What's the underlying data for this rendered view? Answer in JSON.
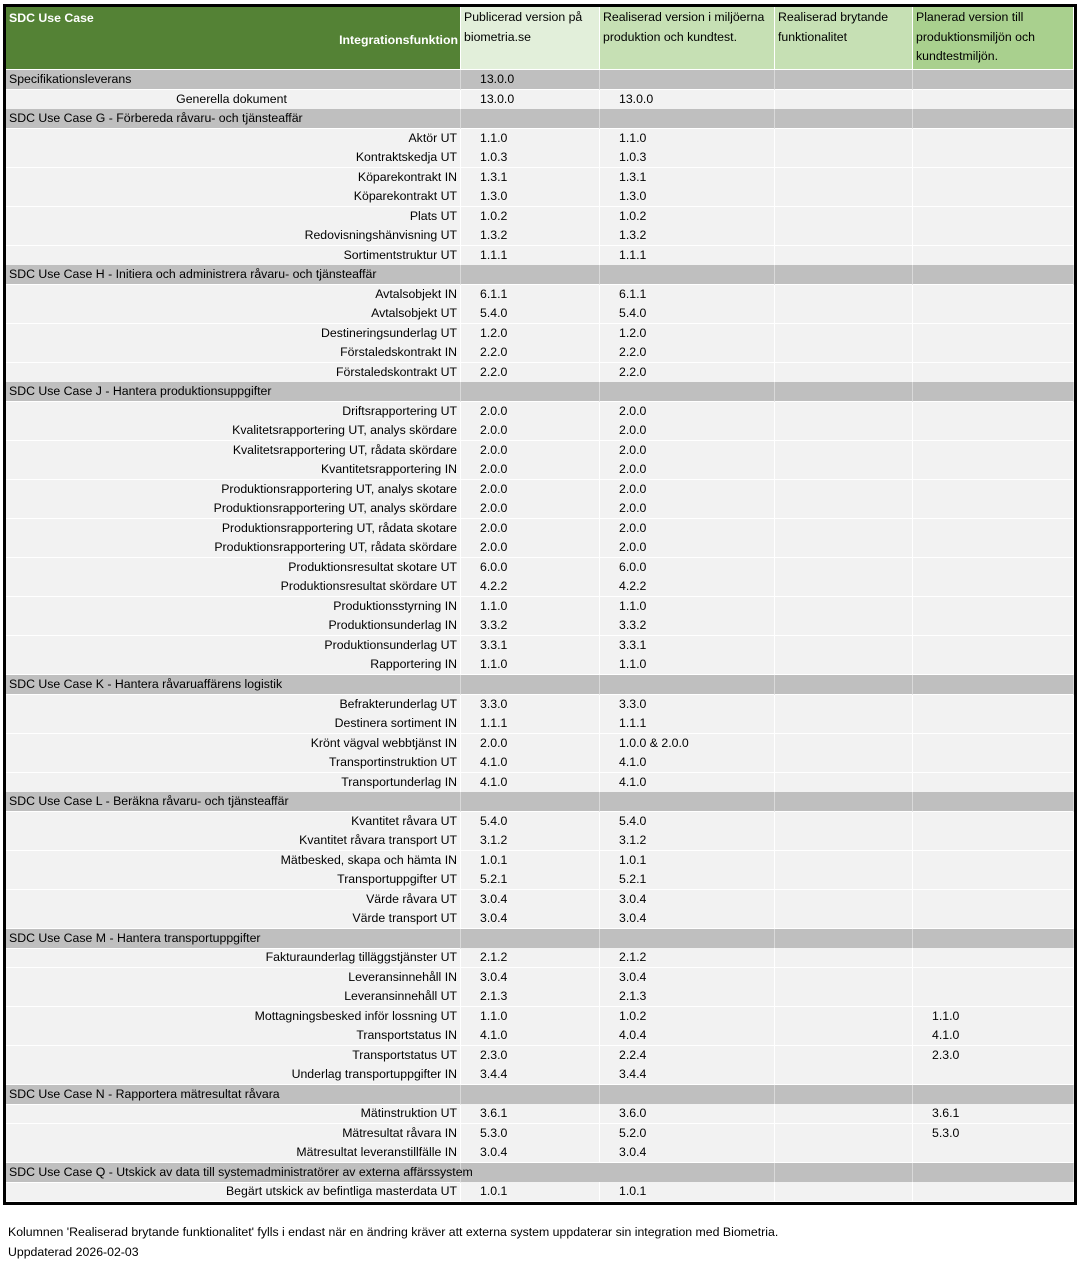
{
  "header": {
    "use_case": "SDC Use Case",
    "integration": "Integrationsfunktion",
    "published": "Publicerad  version på biometria.se",
    "realized": "Realiserad version i miljöerna produktion och kundtest.",
    "breaking": "Realiserad brytande funktionalitet",
    "planned": "Planerad version till produktionsmiljön och kundtestmiljön."
  },
  "colors": {
    "header_dark": "#548235",
    "header_light": "#e2efda",
    "header_mid": "#c6e0b4",
    "header_green": "#a9d08e",
    "group_row": "#bfbfbf",
    "data_row": "#f2f2f2"
  },
  "groups": [
    {
      "title": "Specifikationsleverans",
      "published": "13.0.0",
      "rows": [
        {
          "name": "Generella dokument",
          "published": "13.0.0",
          "realized": "13.0.0",
          "breaking": "",
          "planned": ""
        }
      ]
    },
    {
      "title": "SDC Use Case G - Förbereda råvaru- och tjänsteaffär",
      "rows": [
        {
          "name": "Aktör UT",
          "published": "1.1.0",
          "realized": "1.1.0"
        },
        {
          "name": "Kontraktskedja UT",
          "published": "1.0.3",
          "realized": "1.0.3"
        },
        {
          "name": "Köparekontrakt IN",
          "published": "1.3.1",
          "realized": "1.3.1"
        },
        {
          "name": "Köparekontrakt UT",
          "published": "1.3.0",
          "realized": "1.3.0"
        },
        {
          "name": "Plats UT",
          "published": "1.0.2",
          "realized": "1.0.2"
        },
        {
          "name": "Redovisningshänvisning UT",
          "published": "1.3.2",
          "realized": "1.3.2"
        },
        {
          "name": "Sortimentstruktur UT",
          "published": "1.1.1",
          "realized": "1.1.1"
        }
      ]
    },
    {
      "title": "SDC Use Case H - Initiera och administrera råvaru- och tjänsteaffär",
      "rows": [
        {
          "name": "Avtalsobjekt IN",
          "published": "6.1.1",
          "realized": "6.1.1"
        },
        {
          "name": "Avtalsobjekt UT",
          "published": "5.4.0",
          "realized": "5.4.0"
        },
        {
          "name": "Destineringsunderlag UT",
          "published": "1.2.0",
          "realized": "1.2.0"
        },
        {
          "name": "Förstaledskontrakt IN",
          "published": "2.2.0",
          "realized": "2.2.0"
        },
        {
          "name": "Förstaledskontrakt UT",
          "published": "2.2.0",
          "realized": "2.2.0"
        }
      ]
    },
    {
      "title": "SDC Use Case J - Hantera produktionsuppgifter",
      "rows": [
        {
          "name": "Driftsrapportering UT",
          "published": "2.0.0",
          "realized": "2.0.0"
        },
        {
          "name": "Kvalitetsrapportering UT, analys skördare",
          "published": "2.0.0",
          "realized": "2.0.0"
        },
        {
          "name": "Kvalitetsrapportering UT, rådata skördare",
          "published": "2.0.0",
          "realized": "2.0.0"
        },
        {
          "name": "Kvantitetsrapportering IN",
          "published": "2.0.0",
          "realized": "2.0.0"
        },
        {
          "name": "Produktionsrapportering UT, analys skotare",
          "published": "2.0.0",
          "realized": "2.0.0"
        },
        {
          "name": "Produktionsrapportering UT, analys skördare",
          "published": "2.0.0",
          "realized": "2.0.0"
        },
        {
          "name": "Produktionsrapportering UT, rådata skotare",
          "published": "2.0.0",
          "realized": "2.0.0"
        },
        {
          "name": "Produktionsrapportering UT, rådata skördare",
          "published": "2.0.0",
          "realized": "2.0.0"
        },
        {
          "name": "Produktionsresultat skotare UT",
          "published": "6.0.0",
          "realized": "6.0.0"
        },
        {
          "name": "Produktionsresultat skördare UT",
          "published": "4.2.2",
          "realized": "4.2.2"
        },
        {
          "name": "Produktionsstyrning IN",
          "published": "1.1.0",
          "realized": "1.1.0"
        },
        {
          "name": "Produktionsunderlag IN",
          "published": "3.3.2",
          "realized": "3.3.2"
        },
        {
          "name": "Produktionsunderlag UT",
          "published": "3.3.1",
          "realized": "3.3.1"
        },
        {
          "name": "Rapportering IN",
          "published": "1.1.0",
          "realized": "1.1.0"
        }
      ]
    },
    {
      "title": "SDC Use Case K - Hantera råvaruaffärens logistik",
      "rows": [
        {
          "name": "Befrakterunderlag UT",
          "published": "3.3.0",
          "realized": "3.3.0"
        },
        {
          "name": "Destinera sortiment IN",
          "published": "1.1.1",
          "realized": "1.1.1"
        },
        {
          "name": "Krönt vägval webbtjänst IN",
          "published": "2.0.0",
          "realized": "1.0.0 & 2.0.0"
        },
        {
          "name": "Transportinstruktion UT",
          "published": "4.1.0",
          "realized": "4.1.0"
        },
        {
          "name": "Transportunderlag IN",
          "published": "4.1.0",
          "realized": "4.1.0"
        }
      ]
    },
    {
      "title": "SDC Use Case L - Beräkna råvaru- och tjänsteaffär",
      "rows": [
        {
          "name": "Kvantitet råvara UT",
          "published": "5.4.0",
          "realized": "5.4.0"
        },
        {
          "name": "Kvantitet råvara transport UT",
          "published": "3.1.2",
          "realized": "3.1.2"
        },
        {
          "name": "Mätbesked, skapa och hämta IN",
          "published": "1.0.1",
          "realized": "1.0.1"
        },
        {
          "name": "Transportuppgifter UT",
          "published": "5.2.1",
          "realized": "5.2.1"
        },
        {
          "name": "Värde råvara UT",
          "published": "3.0.4",
          "realized": "3.0.4"
        },
        {
          "name": "Värde transport UT",
          "published": "3.0.4",
          "realized": "3.0.4"
        }
      ]
    },
    {
      "title": "SDC Use Case M - Hantera transportuppgifter",
      "rows": [
        {
          "name": "Fakturaunderlag tilläggstjänster UT",
          "published": "2.1.2",
          "realized": "2.1.2"
        },
        {
          "name": "Leveransinnehåll IN",
          "published": "3.0.4",
          "realized": "3.0.4"
        },
        {
          "name": "Leveransinnehåll UT",
          "published": "2.1.3",
          "realized": "2.1.3"
        },
        {
          "name": "Mottagningsbesked inför lossning UT",
          "published": "1.1.0",
          "realized": "1.0.2",
          "planned": "1.1.0"
        },
        {
          "name": "Transportstatus IN",
          "published": "4.1.0",
          "realized": "4.0.4",
          "planned": "4.1.0"
        },
        {
          "name": "Transportstatus UT",
          "published": "2.3.0",
          "realized": "2.2.4",
          "planned": "2.3.0"
        },
        {
          "name": "Underlag transportuppgifter IN",
          "published": "3.4.4",
          "realized": "3.4.4"
        }
      ]
    },
    {
      "title": "SDC Use Case N - Rapportera mätresultat råvara",
      "rows": [
        {
          "name": "Mätinstruktion UT",
          "published": "3.6.1",
          "realized": "3.6.0",
          "planned": "3.6.1"
        },
        {
          "name": "Mätresultat råvara IN",
          "published": "5.3.0",
          "realized": "5.2.0",
          "planned": "5.3.0"
        },
        {
          "name": "Mätresultat leveranstillfälle IN",
          "published": "3.0.4",
          "realized": "3.0.4"
        }
      ]
    },
    {
      "title": "SDC Use Case Q - Utskick av data till systemadministratörer av externa affärssystem",
      "wide": true,
      "rows": [
        {
          "name": "Begärt utskick av befintliga masterdata UT",
          "published": "1.0.1",
          "realized": "1.0.1"
        }
      ]
    }
  ],
  "footer": {
    "note": "Kolumnen 'Realiserad brytande funktionalitet' fylls i endast när en ändring kräver att externa system uppdaterar sin integration med Biometria.",
    "updated": "Uppdaterad 2026-02-03"
  }
}
